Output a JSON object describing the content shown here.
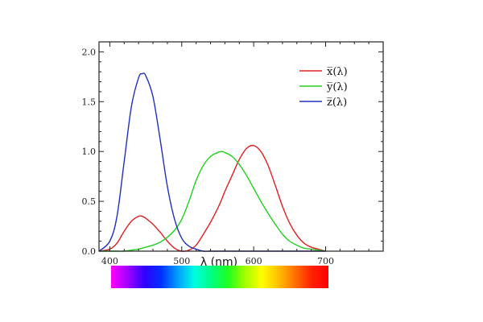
{
  "chart_data": {
    "type": "line",
    "title": "",
    "xlabel": "λ (nm)",
    "ylabel": "",
    "xlim": [
      385,
      780
    ],
    "ylim": [
      0,
      2.1
    ],
    "x_ticks": [
      400,
      500,
      600,
      700
    ],
    "y_ticks": [
      0.0,
      0.5,
      1.0,
      1.5,
      2.0
    ],
    "x_tick_labels": [
      "400",
      "500",
      "600",
      "700"
    ],
    "y_tick_labels": [
      "0.0",
      "0.5",
      "1.0",
      "1.5",
      "2.0"
    ],
    "grid": false,
    "legend_position": "top-right",
    "x": [
      385,
      400,
      410,
      420,
      430,
      440,
      445,
      450,
      460,
      470,
      480,
      490,
      500,
      510,
      520,
      530,
      540,
      550,
      555,
      560,
      570,
      580,
      590,
      600,
      610,
      620,
      630,
      640,
      650,
      660,
      670,
      680,
      690,
      700
    ],
    "series": [
      {
        "name": "x̅(λ)",
        "color": "#e02020",
        "values": [
          0.0,
          0.02,
          0.08,
          0.2,
          0.3,
          0.35,
          0.35,
          0.33,
          0.27,
          0.19,
          0.1,
          0.03,
          0.0,
          0.01,
          0.06,
          0.17,
          0.29,
          0.43,
          0.51,
          0.6,
          0.76,
          0.92,
          1.03,
          1.06,
          1.0,
          0.86,
          0.66,
          0.45,
          0.28,
          0.16,
          0.08,
          0.04,
          0.02,
          0.0
        ]
      },
      {
        "name": "y̅(λ)",
        "color": "#20d020",
        "values": [
          0.0,
          0.0,
          0.0,
          0.0,
          0.01,
          0.02,
          0.03,
          0.04,
          0.06,
          0.09,
          0.14,
          0.21,
          0.32,
          0.5,
          0.71,
          0.86,
          0.95,
          0.99,
          1.0,
          0.99,
          0.95,
          0.87,
          0.76,
          0.63,
          0.5,
          0.38,
          0.27,
          0.17,
          0.1,
          0.06,
          0.03,
          0.02,
          0.01,
          0.0
        ]
      },
      {
        "name": "z̅(λ)",
        "color": "#2030c0",
        "values": [
          0.0,
          0.1,
          0.35,
          0.9,
          1.45,
          1.74,
          1.78,
          1.76,
          1.55,
          1.12,
          0.65,
          0.32,
          0.13,
          0.05,
          0.02,
          0.0,
          0.0,
          0.0,
          0.0,
          0.0,
          0.0,
          0.0,
          0.0,
          0.0,
          0.0,
          0.0,
          0.0,
          0.0,
          0.0,
          0.0,
          0.0,
          0.0,
          0.0,
          0.0
        ]
      }
    ],
    "spectrum_bar": {
      "from": 400,
      "to": 700,
      "colors": [
        "#ff00ff",
        "#a000ff",
        "#3000ff",
        "#0030ff",
        "#00a0ff",
        "#00ffe0",
        "#00ff80",
        "#20ff20",
        "#a0ff00",
        "#ffff00",
        "#ffc000",
        "#ff7000",
        "#ff2000",
        "#ff0000"
      ]
    }
  }
}
